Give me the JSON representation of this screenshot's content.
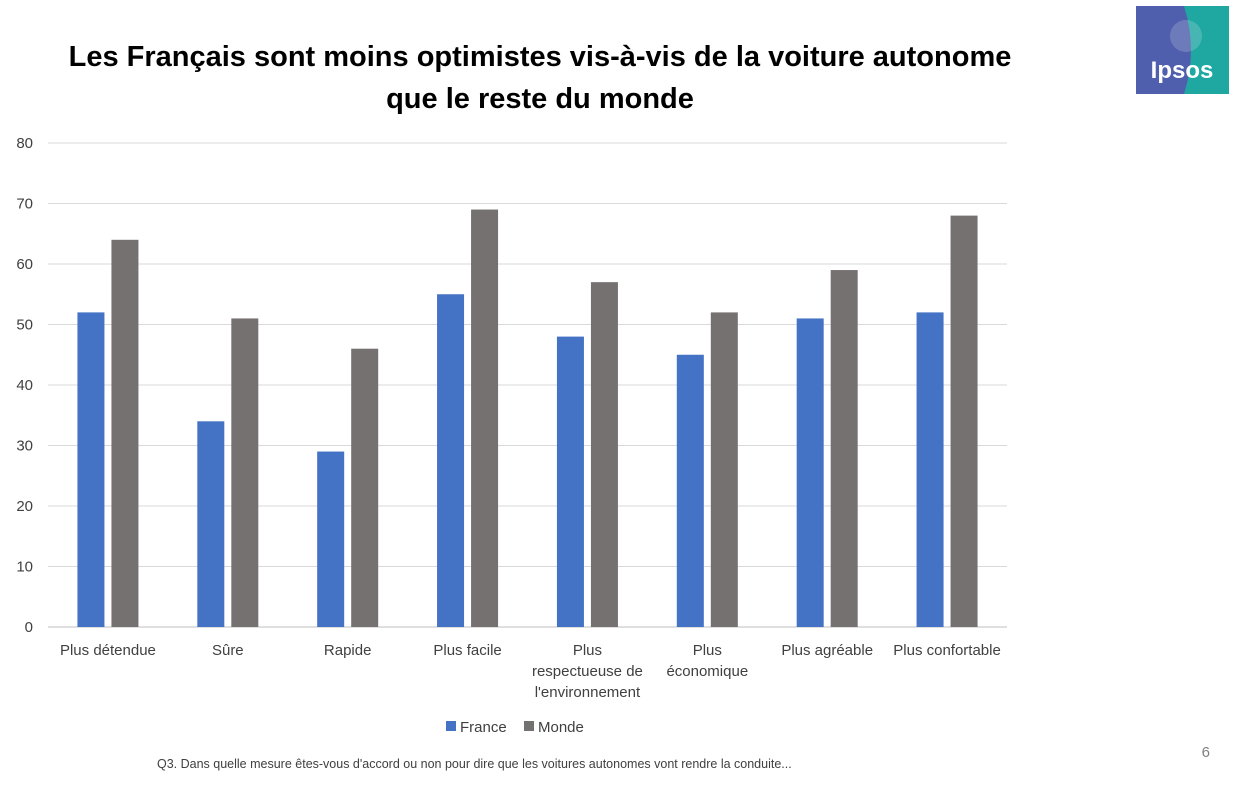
{
  "slide": {
    "title_line1": "Les Français sont moins optimistes vis-à-vis de la voiture autonome",
    "title_line2": "que le reste du monde",
    "logo_text": "Ipsos",
    "page_number": "6",
    "footnote": "Q3. Dans quelle mesure êtes-vous d'accord ou non pour dire que les voitures autonomes vont rendre la conduite..."
  },
  "chart_data": {
    "type": "bar",
    "categories": [
      [
        "Plus détendue"
      ],
      [
        "Sûre"
      ],
      [
        "Rapide"
      ],
      [
        "Plus facile"
      ],
      [
        "Plus",
        "respectueuse de",
        "l'environnement"
      ],
      [
        "Plus",
        "économique"
      ],
      [
        "Plus agréable"
      ],
      [
        "Plus confortable"
      ]
    ],
    "series": [
      {
        "name": "France",
        "color": "#4472c4",
        "values": [
          52,
          34,
          29,
          55,
          48,
          45,
          51,
          52
        ]
      },
      {
        "name": "Monde",
        "color": "#767171",
        "values": [
          64,
          51,
          46,
          69,
          57,
          52,
          59,
          68
        ]
      }
    ],
    "ylim": [
      0,
      80
    ],
    "yticks": [
      0,
      10,
      20,
      30,
      40,
      50,
      60,
      70,
      80
    ],
    "grid": true,
    "legend_position": "bottom",
    "xlabel": "",
    "ylabel": ""
  },
  "colors": {
    "logo_left": "#4f5fad",
    "logo_right": "#1fa7a2",
    "gridline": "#d9d9d9"
  }
}
